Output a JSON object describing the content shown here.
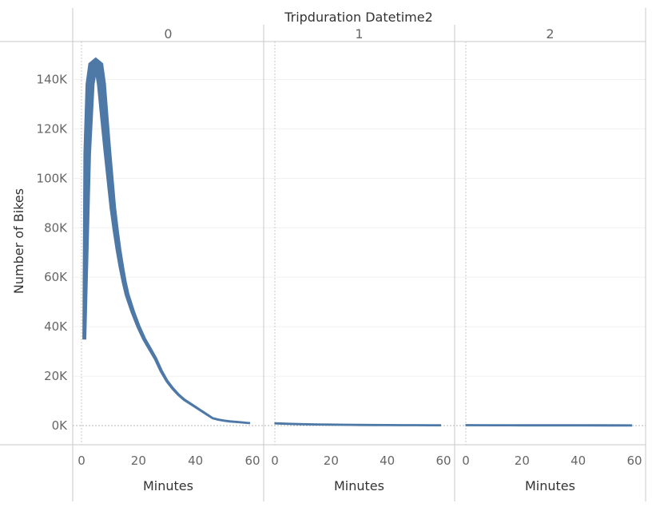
{
  "chart_data": {
    "type": "line",
    "title": "Tripduration Datetime2",
    "ylabel": "Number of Bikes",
    "xlabel": "Minutes",
    "ylim": [
      0,
      150000
    ],
    "yticks": [
      0,
      20000,
      40000,
      60000,
      80000,
      100000,
      120000,
      140000
    ],
    "ytick_labels": [
      "0K",
      "20K",
      "40K",
      "60K",
      "80K",
      "100K",
      "120K",
      "140K"
    ],
    "xlim": [
      0,
      60
    ],
    "xticks": [
      0,
      20,
      40,
      60
    ],
    "xtick_labels": [
      "0",
      "20",
      "40",
      "60"
    ],
    "grid": true,
    "color": "#4e79a7",
    "panels": [
      {
        "label": "0",
        "x": [
          1,
          2,
          3,
          4,
          5,
          6,
          7,
          8,
          9,
          10,
          11,
          12,
          13,
          14,
          15,
          16,
          18,
          20,
          22,
          24,
          26,
          28,
          30,
          32,
          34,
          36,
          38,
          40,
          42,
          44,
          46,
          48,
          50,
          52,
          54,
          56,
          58,
          59
        ],
        "y": [
          35000,
          110000,
          138000,
          146000,
          147000,
          146000,
          138000,
          125000,
          112000,
          100000,
          88000,
          79000,
          71000,
          64000,
          58000,
          53000,
          46000,
          40000,
          35000,
          31000,
          27000,
          22000,
          18000,
          15000,
          12500,
          10500,
          9000,
          7500,
          6000,
          4500,
          3000,
          2400,
          2000,
          1700,
          1500,
          1300,
          1100,
          1000
        ]
      },
      {
        "label": "1",
        "x": [
          0,
          5,
          10,
          15,
          20,
          25,
          30,
          35,
          40,
          45,
          50,
          55,
          59
        ],
        "y": [
          900,
          700,
          550,
          450,
          380,
          320,
          270,
          230,
          200,
          170,
          150,
          130,
          120
        ]
      },
      {
        "label": "2",
        "x": [
          0,
          10,
          20,
          30,
          40,
          50,
          59
        ],
        "y": [
          150,
          130,
          110,
          100,
          90,
          80,
          70
        ]
      }
    ]
  }
}
